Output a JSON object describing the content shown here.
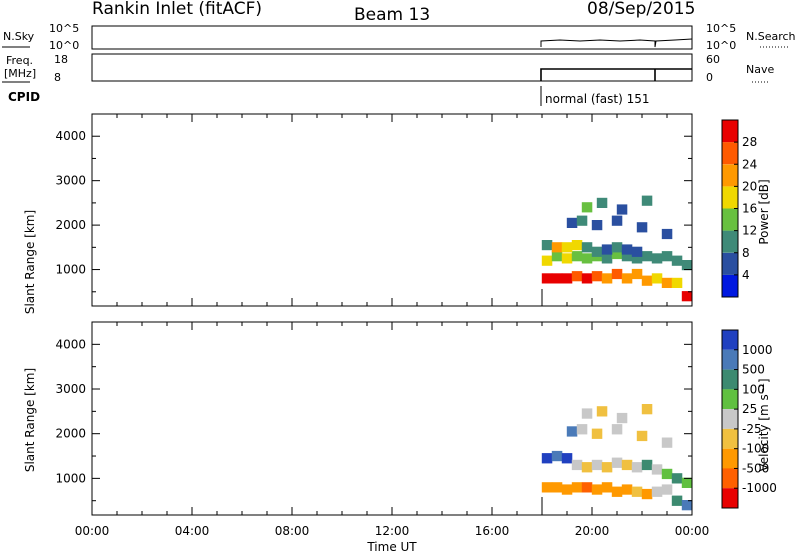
{
  "header": {
    "station": "Rankin Inlet (fitACF)",
    "beam": "Beam 13",
    "date": "08/Sep/2015"
  },
  "strip_labels": {
    "nsky": "N.Sky",
    "nsky_top": "10^5",
    "nsky_bottom": "10^0",
    "nsearch": "N.Search",
    "nsearch_top": "10^5",
    "nsearch_bottom": "10^0",
    "freq_l1": "Freq.",
    "freq_l2": "[MHz]",
    "freq_top": "18",
    "freq_bottom": "8",
    "nave": "Nave",
    "nave_top": "60",
    "nave_bottom": "0",
    "cpid": "CPID",
    "mode": "normal (fast) 151"
  },
  "colors": {
    "power": [
      "#0018e0",
      "#2a4fa0",
      "#3f8a78",
      "#68c040",
      "#f0d800",
      "#ff9900",
      "#ff5a00",
      "#e80000"
    ],
    "velocity": [
      "#2040c0",
      "#4a7ab8",
      "#3c8a70",
      "#60c040",
      "#c8c8c8",
      "#f0c040",
      "#ff9900",
      "#ff6000",
      "#e80000"
    ]
  },
  "chart_data": [
    {
      "type": "heatmap",
      "name": "power",
      "title": "",
      "xlabel": "Time UT",
      "ylabel": "Slant Range [km]",
      "xlim": [
        0,
        24
      ],
      "x_ticks": [
        "00:00",
        "04:00",
        "08:00",
        "12:00",
        "16:00",
        "20:00",
        "00:00"
      ],
      "ylim": [
        180,
        4500
      ],
      "y_ticks": [
        1000,
        2000,
        3000,
        4000
      ],
      "colorbar_label": "Power [dB]",
      "colorbar_ticks": [
        "4",
        "8",
        "12",
        "16",
        "20",
        "24",
        "28"
      ],
      "data_extent": {
        "time_start": 18.0,
        "time_end": 24.0
      },
      "cells": [
        [
          18.2,
          800,
          7
        ],
        [
          18.6,
          800,
          7
        ],
        [
          19.0,
          800,
          7
        ],
        [
          19.4,
          850,
          6
        ],
        [
          19.8,
          800,
          7
        ],
        [
          20.2,
          850,
          6
        ],
        [
          20.6,
          800,
          5
        ],
        [
          21.0,
          900,
          6
        ],
        [
          21.4,
          800,
          5
        ],
        [
          21.8,
          900,
          5
        ],
        [
          22.2,
          750,
          5
        ],
        [
          22.6,
          800,
          4
        ],
        [
          23.0,
          700,
          5
        ],
        [
          23.4,
          700,
          4
        ],
        [
          23.8,
          400,
          7
        ],
        [
          18.2,
          1200,
          4
        ],
        [
          18.6,
          1300,
          3
        ],
        [
          19.0,
          1250,
          4
        ],
        [
          19.4,
          1300,
          3
        ],
        [
          19.8,
          1250,
          3
        ],
        [
          20.2,
          1300,
          3
        ],
        [
          20.6,
          1250,
          2
        ],
        [
          21.0,
          1350,
          3
        ],
        [
          21.4,
          1300,
          2
        ],
        [
          21.8,
          1250,
          2
        ],
        [
          22.2,
          1300,
          2
        ],
        [
          22.6,
          1250,
          2
        ],
        [
          23.0,
          1300,
          2
        ],
        [
          23.4,
          1200,
          2
        ],
        [
          23.8,
          1100,
          2
        ],
        [
          18.2,
          1550,
          2
        ],
        [
          18.6,
          1500,
          5
        ],
        [
          19.0,
          1500,
          4
        ],
        [
          19.4,
          1550,
          4
        ],
        [
          19.8,
          1500,
          2
        ],
        [
          20.2,
          1400,
          2
        ],
        [
          20.6,
          1450,
          1
        ],
        [
          21.0,
          1500,
          2
        ],
        [
          21.4,
          1450,
          1
        ],
        [
          21.8,
          1400,
          1
        ],
        [
          19.2,
          2050,
          1
        ],
        [
          19.6,
          2100,
          2
        ],
        [
          20.2,
          2000,
          1
        ],
        [
          21.0,
          2100,
          1
        ],
        [
          22.0,
          1950,
          1
        ],
        [
          19.8,
          2400,
          3
        ],
        [
          20.4,
          2500,
          2
        ],
        [
          21.2,
          2350,
          1
        ],
        [
          22.2,
          2550,
          2
        ],
        [
          23.0,
          1800,
          1
        ]
      ]
    },
    {
      "type": "heatmap",
      "name": "velocity",
      "title": "",
      "xlabel": "Time UT",
      "ylabel": "Slant Range [km]",
      "xlim": [
        0,
        24
      ],
      "x_ticks": [
        "00:00",
        "04:00",
        "08:00",
        "12:00",
        "16:00",
        "20:00",
        "00:00"
      ],
      "ylim": [
        180,
        4500
      ],
      "y_ticks": [
        1000,
        2000,
        3000,
        4000
      ],
      "colorbar_label": "Velocity [m s⁻¹]",
      "colorbar_ticks": [
        "1000",
        "500",
        "100",
        "25",
        "-25",
        "-100",
        "-500",
        "-1000"
      ],
      "data_extent": {
        "time_start": 18.0,
        "time_end": 24.0
      },
      "cells": [
        [
          18.2,
          800,
          6
        ],
        [
          18.6,
          800,
          6
        ],
        [
          19.0,
          750,
          6
        ],
        [
          19.4,
          800,
          6
        ],
        [
          19.8,
          800,
          7
        ],
        [
          20.2,
          750,
          6
        ],
        [
          20.6,
          800,
          6
        ],
        [
          21.0,
          700,
          6
        ],
        [
          21.4,
          750,
          6
        ],
        [
          21.8,
          700,
          5
        ],
        [
          22.2,
          650,
          6
        ],
        [
          22.6,
          700,
          4
        ],
        [
          23.0,
          750,
          4
        ],
        [
          23.4,
          500,
          2
        ],
        [
          23.8,
          400,
          1
        ],
        [
          18.2,
          1450,
          0
        ],
        [
          18.6,
          1500,
          1
        ],
        [
          19.0,
          1450,
          0
        ],
        [
          19.4,
          1300,
          4
        ],
        [
          19.8,
          1250,
          5
        ],
        [
          20.2,
          1300,
          4
        ],
        [
          20.6,
          1250,
          5
        ],
        [
          21.0,
          1350,
          4
        ],
        [
          21.4,
          1300,
          5
        ],
        [
          21.8,
          1250,
          4
        ],
        [
          22.2,
          1300,
          2
        ],
        [
          22.6,
          1200,
          4
        ],
        [
          23.0,
          1100,
          3
        ],
        [
          23.4,
          1000,
          2
        ],
        [
          23.8,
          900,
          3
        ],
        [
          19.2,
          2050,
          1
        ],
        [
          19.6,
          2100,
          4
        ],
        [
          20.2,
          2000,
          5
        ],
        [
          21.0,
          2100,
          4
        ],
        [
          22.0,
          1950,
          5
        ],
        [
          19.8,
          2450,
          4
        ],
        [
          20.4,
          2500,
          5
        ],
        [
          21.2,
          2350,
          4
        ],
        [
          22.2,
          2550,
          5
        ],
        [
          23.0,
          1800,
          4
        ]
      ]
    }
  ]
}
